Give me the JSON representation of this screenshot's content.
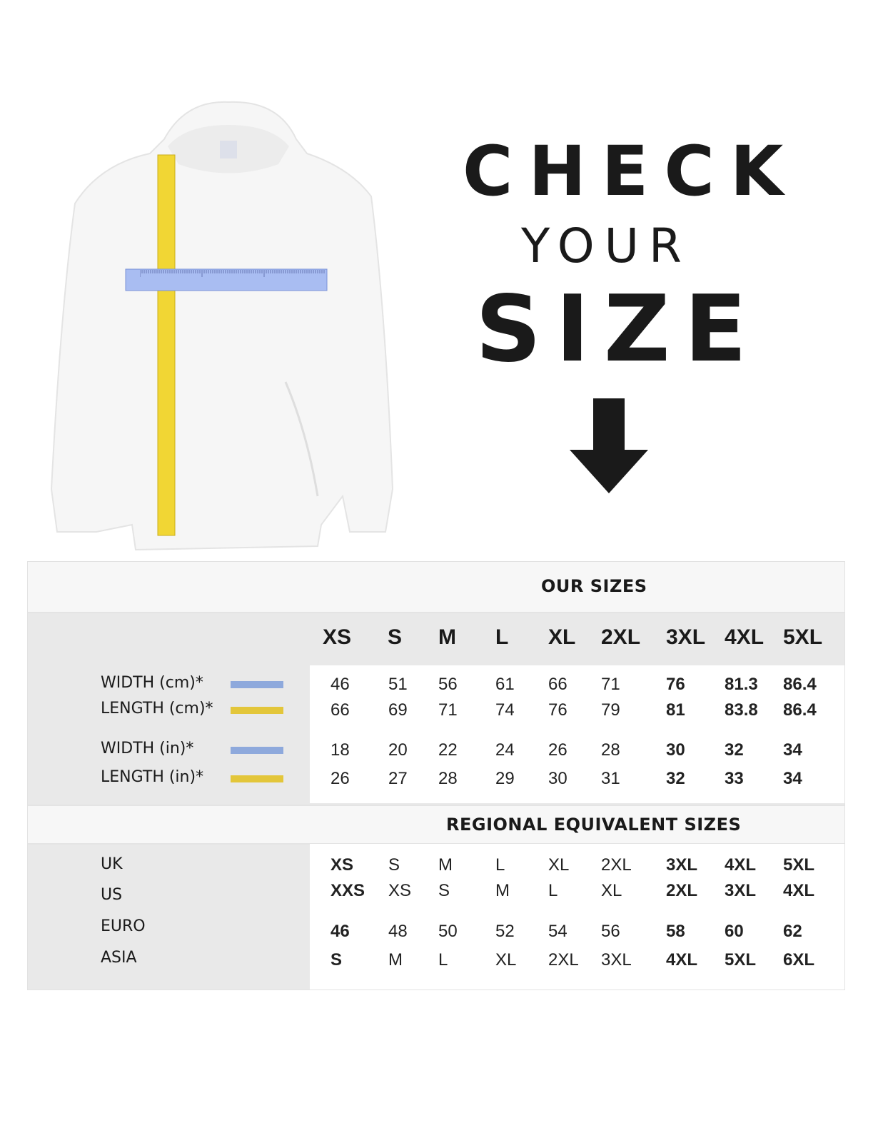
{
  "headline": {
    "line1": "CHECK",
    "line2": "YOUR",
    "line3": "SIZE"
  },
  "icons": {
    "arrow": "arrow-down-icon",
    "garment": "hoodie-illustration"
  },
  "colors": {
    "width_swatch": "#8ea9dc",
    "length_swatch": "#e3c63a",
    "text": "#1a1a1a"
  },
  "our_sizes": {
    "title": "OUR SIZES",
    "columns": [
      "XS",
      "S",
      "M",
      "L",
      "XL",
      "2XL",
      "3XL",
      "4XL",
      "5XL"
    ],
    "rows": [
      {
        "label": "WIDTH (cm)*",
        "swatch": "width",
        "values": [
          "46",
          "51",
          "56",
          "61",
          "66",
          "71",
          "76",
          "81.3",
          "86.4"
        ]
      },
      {
        "label": "LENGTH (cm)*",
        "swatch": "length",
        "values": [
          "66",
          "69",
          "71",
          "74",
          "76",
          "79",
          "81",
          "83.8",
          "86.4"
        ]
      },
      {
        "label": "WIDTH (in)*",
        "swatch": "width",
        "values": [
          "18",
          "20",
          "22",
          "24",
          "26",
          "28",
          "30",
          "32",
          "34"
        ]
      },
      {
        "label": "LENGTH (in)*",
        "swatch": "length",
        "values": [
          "26",
          "27",
          "28",
          "29",
          "30",
          "31",
          "32",
          "33",
          "34"
        ]
      }
    ]
  },
  "regional": {
    "title": "REGIONAL EQUIVALENT SIZES",
    "rows": [
      {
        "label": "UK",
        "values": [
          "XS",
          "S",
          "M",
          "L",
          "XL",
          "2XL",
          "3XL",
          "4XL",
          "5XL"
        ]
      },
      {
        "label": "US",
        "values": [
          "XXS",
          "XS",
          "S",
          "M",
          "L",
          "XL",
          "2XL",
          "3XL",
          "4XL"
        ]
      },
      {
        "label": "EURO",
        "values": [
          "46",
          "48",
          "50",
          "52",
          "54",
          "56",
          "58",
          "60",
          "62"
        ]
      },
      {
        "label": "ASIA",
        "values": [
          "S",
          "M",
          "L",
          "XL",
          "2XL",
          "3XL",
          "4XL",
          "5XL",
          "6XL"
        ]
      }
    ]
  }
}
